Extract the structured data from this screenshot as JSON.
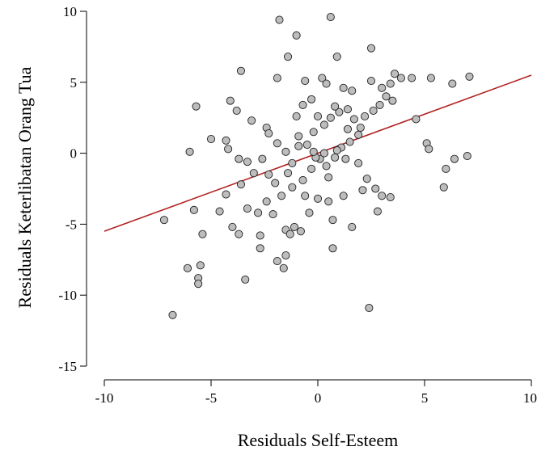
{
  "chart_data": {
    "type": "scatter",
    "xlabel": "Residuals Self-Esteem",
    "ylabel": "Residuals Keterlibatan Orang Tua",
    "xlim": [
      -10,
      10
    ],
    "ylim": [
      -15,
      10
    ],
    "x_ticks": [
      "-10",
      "-5",
      "0",
      "5",
      "10"
    ],
    "y_ticks": [
      "-15",
      "-10",
      "-5",
      "0",
      "5",
      "10"
    ],
    "grid": false,
    "colors": {
      "point_fill": "#bdbdbd",
      "point_stroke": "#222222",
      "line": "#b22222",
      "axis": "#000000"
    },
    "regression_line": {
      "x": [
        -10,
        10
      ],
      "y": [
        -5.5,
        5.5
      ]
    },
    "points": [
      [
        -1.8,
        9.4
      ],
      [
        0.6,
        9.6
      ],
      [
        -1.0,
        8.3
      ],
      [
        0.9,
        6.8
      ],
      [
        -1.4,
        6.8
      ],
      [
        2.5,
        7.4
      ],
      [
        -3.6,
        5.8
      ],
      [
        -5.7,
        3.3
      ],
      [
        -4.1,
        3.7
      ],
      [
        -3.8,
        3.0
      ],
      [
        -3.1,
        2.3
      ],
      [
        -2.4,
        1.8
      ],
      [
        -1.9,
        5.3
      ],
      [
        -0.6,
        5.1
      ],
      [
        0.2,
        5.3
      ],
      [
        0.4,
        4.9
      ],
      [
        1.2,
        4.6
      ],
      [
        2.5,
        5.1
      ],
      [
        3.6,
        5.6
      ],
      [
        4.4,
        5.3
      ],
      [
        5.3,
        5.3
      ],
      [
        6.3,
        4.9
      ],
      [
        7.1,
        5.4
      ],
      [
        3.4,
        4.9
      ],
      [
        -5.0,
        1.0
      ],
      [
        -4.3,
        0.9
      ],
      [
        -4.2,
        0.3
      ],
      [
        -3.7,
        -0.4
      ],
      [
        -2.6,
        -0.4
      ],
      [
        -1.9,
        0.7
      ],
      [
        -1.5,
        0.1
      ],
      [
        -0.9,
        1.2
      ],
      [
        -0.5,
        0.6
      ],
      [
        -0.2,
        1.5
      ],
      [
        0.3,
        2.0
      ],
      [
        0.6,
        2.5
      ],
      [
        1.0,
        2.9
      ],
      [
        1.4,
        3.1
      ],
      [
        1.7,
        2.4
      ],
      [
        2.0,
        1.8
      ],
      [
        2.2,
        2.6
      ],
      [
        2.6,
        3.0
      ],
      [
        2.9,
        3.4
      ],
      [
        3.2,
        4.0
      ],
      [
        3.5,
        3.7
      ],
      [
        4.6,
        2.4
      ],
      [
        5.1,
        0.7
      ],
      [
        5.2,
        0.3
      ],
      [
        6.0,
        -1.1
      ],
      [
        6.4,
        -0.4
      ],
      [
        7.0,
        -0.2
      ],
      [
        5.9,
        -2.4
      ],
      [
        -6.0,
        0.1
      ],
      [
        -5.8,
        -4.0
      ],
      [
        -4.3,
        -2.9
      ],
      [
        -3.6,
        -2.2
      ],
      [
        -3.0,
        -1.4
      ],
      [
        -2.3,
        -1.5
      ],
      [
        -2.0,
        -2.1
      ],
      [
        -1.7,
        -3.0
      ],
      [
        -1.2,
        -2.4
      ],
      [
        -0.7,
        -1.9
      ],
      [
        -0.3,
        -1.1
      ],
      [
        0.1,
        -0.4
      ],
      [
        0.4,
        -0.9
      ],
      [
        0.8,
        -0.3
      ],
      [
        1.1,
        0.4
      ],
      [
        1.5,
        0.8
      ],
      [
        1.9,
        -0.7
      ],
      [
        2.3,
        -1.8
      ],
      [
        2.7,
        -2.5
      ],
      [
        3.0,
        -3.0
      ],
      [
        3.4,
        -3.1
      ],
      [
        2.8,
        -4.1
      ],
      [
        -7.2,
        -4.7
      ],
      [
        -5.4,
        -5.7
      ],
      [
        -4.6,
        -4.1
      ],
      [
        -4.0,
        -5.2
      ],
      [
        -3.7,
        -5.7
      ],
      [
        -3.3,
        -3.9
      ],
      [
        -2.8,
        -4.2
      ],
      [
        -2.7,
        -5.8
      ],
      [
        -2.1,
        -4.3
      ],
      [
        -1.5,
        -5.4
      ],
      [
        -1.1,
        -5.2
      ],
      [
        -0.8,
        -5.5
      ],
      [
        -0.4,
        -4.2
      ],
      [
        0.0,
        -3.2
      ],
      [
        0.5,
        -3.4
      ],
      [
        0.7,
        -4.7
      ],
      [
        1.2,
        -3.0
      ],
      [
        1.6,
        -5.2
      ],
      [
        0.7,
        -6.7
      ],
      [
        -1.3,
        -5.7
      ],
      [
        -2.7,
        -6.7
      ],
      [
        -1.9,
        -7.6
      ],
      [
        -1.6,
        -8.1
      ],
      [
        -1.5,
        -7.2
      ],
      [
        -6.1,
        -8.1
      ],
      [
        -5.5,
        -7.9
      ],
      [
        -5.6,
        -8.8
      ],
      [
        -5.6,
        -9.2
      ],
      [
        -3.4,
        -8.9
      ],
      [
        -6.8,
        -11.4
      ],
      [
        2.4,
        -10.9
      ],
      [
        -2.3,
        1.4
      ],
      [
        -1.0,
        2.6
      ],
      [
        0.0,
        2.6
      ],
      [
        1.9,
        1.3
      ],
      [
        0.8,
        3.3
      ],
      [
        -0.3,
        3.8
      ],
      [
        -0.7,
        3.4
      ],
      [
        1.6,
        4.4
      ],
      [
        3.0,
        4.6
      ],
      [
        3.9,
        5.3
      ],
      [
        -1.2,
        -0.7
      ],
      [
        -0.1,
        -0.3
      ],
      [
        0.3,
        0.0
      ],
      [
        0.9,
        0.2
      ],
      [
        1.3,
        -0.4
      ],
      [
        -2.4,
        -3.4
      ],
      [
        -0.6,
        -3.0
      ],
      [
        2.1,
        -2.6
      ],
      [
        -3.3,
        -0.6
      ],
      [
        -1.4,
        -1.4
      ],
      [
        -0.2,
        0.1
      ],
      [
        1.4,
        1.7
      ],
      [
        -0.9,
        0.5
      ],
      [
        0.5,
        -1.7
      ]
    ]
  }
}
